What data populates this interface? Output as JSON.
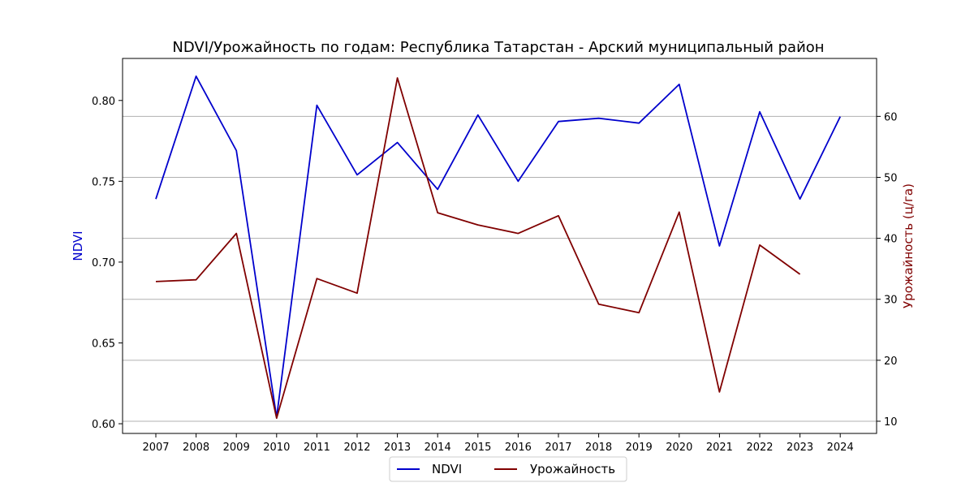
{
  "chart_data": {
    "type": "line",
    "title": "NDVI/Урожайность по годам: Республика Татарстан - Арский муниципальный район",
    "xlabel": "",
    "y_left_label": "NDVI",
    "y_right_label": "Урожайность (ц/га)",
    "x": [
      "2007",
      "2008",
      "2009",
      "2010",
      "2011",
      "2012",
      "2013",
      "2014",
      "2015",
      "2016",
      "2017",
      "2018",
      "2019",
      "2020",
      "2021",
      "2022",
      "2023",
      "2024"
    ],
    "y_left_ticks": [
      "0.60",
      "0.65",
      "0.70",
      "0.75",
      "0.80"
    ],
    "y_right_ticks": [
      "10",
      "20",
      "30",
      "40",
      "50",
      "60"
    ],
    "y_left_lim": [
      0.594,
      0.826
    ],
    "y_right_lim": [
      8.0,
      69.5
    ],
    "grid": "horizontal, right axis",
    "legend_position": "bottom-center",
    "series": [
      {
        "name": "NDVI",
        "axis": "left",
        "color": "#0000cc",
        "values": [
          0.739,
          0.815,
          0.769,
          0.604,
          0.797,
          0.754,
          0.774,
          0.745,
          0.791,
          0.75,
          0.787,
          0.789,
          0.786,
          0.81,
          0.71,
          0.793,
          0.739,
          0.79
        ]
      },
      {
        "name": "Урожайность",
        "axis": "right",
        "color": "#800000",
        "values": [
          32.9,
          33.2,
          40.8,
          10.5,
          33.4,
          31.0,
          66.3,
          44.2,
          42.2,
          40.8,
          43.7,
          29.2,
          27.8,
          44.3,
          14.8,
          38.9,
          34.1,
          null
        ]
      }
    ]
  }
}
